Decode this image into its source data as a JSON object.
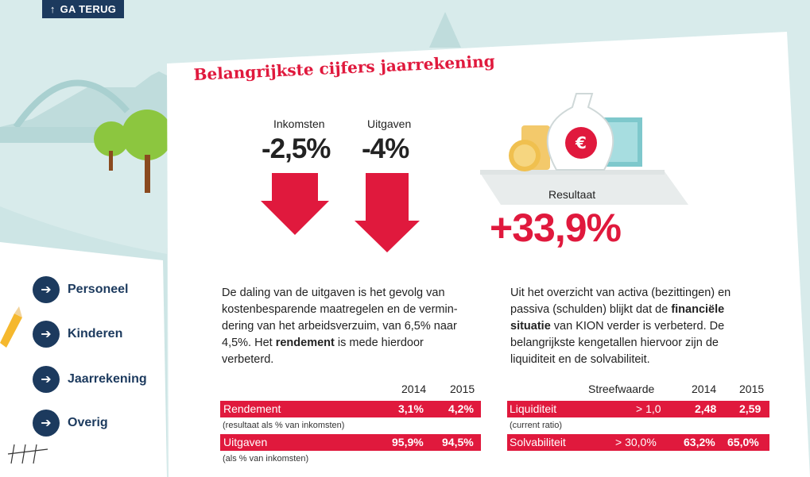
{
  "back_button": {
    "label": "GA TERUG"
  },
  "title": "Belangrijkste cijfers jaarrekening",
  "income": {
    "label": "Inkomsten",
    "value": "-2,5%"
  },
  "expenses": {
    "label": "Uitgaven",
    "value": "-4%"
  },
  "result": {
    "label": "Resultaat",
    "value": "+33,9%"
  },
  "paragraph_left": {
    "lines": [
      "De daling van de uitgaven is het gevolg van",
      "kostenbesparende maatregelen en de vermin-",
      "dering van het arbeidsverzuim, van 6,5% naar"
    ],
    "line4_pre": "4,5%. Het ",
    "line4_bold": "rendement",
    "line4_post": " is mede hierdoor",
    "line5": "verbeterd."
  },
  "paragraph_right": {
    "line1": "Uit het overzicht van activa (bezittingen) en",
    "line2_pre": "passiva (schulden) blijkt dat de ",
    "line2_bold": "financiële",
    "line3_bold": "situatie",
    "line3_post": " van KION verder is verbeterd. De",
    "line4": "belangrijkste kengetallen hiervoor zijn de",
    "line5": "liquiditeit en de solvabiliteit."
  },
  "table_left": {
    "col_2014": "2014",
    "col_2015": "2015",
    "rows": [
      {
        "label": "Rendement",
        "v2014": "3,1%",
        "v2015": "4,2%",
        "note": "(resultaat als % van inkomsten)"
      },
      {
        "label": "Uitgaven",
        "v2014": "95,9%",
        "v2015": "94,5%",
        "note": "(als % van inkomsten)"
      }
    ]
  },
  "table_right": {
    "col_target": "Streefwaarde",
    "col_2014": "2014",
    "col_2015": "2015",
    "rows": [
      {
        "label": "Liquiditeit",
        "target": "> 1,0",
        "v2014": "2,48",
        "v2015": "2,59",
        "note": "(current ratio)"
      },
      {
        "label": "Solvabiliteit",
        "target": "> 30,0%",
        "v2014": "63,2%",
        "v2015": "65,0%"
      }
    ]
  },
  "nav": [
    {
      "label": "Personeel"
    },
    {
      "label": "Kinderen"
    },
    {
      "label": "Jaarrekening"
    },
    {
      "label": "Overig"
    }
  ],
  "colors": {
    "accent": "#e0193d",
    "navy": "#1c3a5e",
    "background": "#d8ebeb"
  }
}
